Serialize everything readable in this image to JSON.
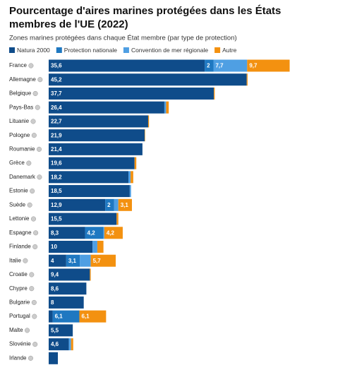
{
  "chart_data": {
    "type": "stacked_bar_horizontal",
    "title": "Pourcentage d'aires marines protégées dans les États membres de l'UE (2022)",
    "subtitle": "Zones marines protégées dans chaque État membre (par type de protection)",
    "categories": [
      "France",
      "Allemagne",
      "Belgique",
      "Pays-Bas",
      "Lituanie",
      "Pologne",
      "Roumanie",
      "Grèce",
      "Danemark",
      "Estonie",
      "Suède",
      "Lettonie",
      "Espagne",
      "Finlande",
      "Italie",
      "Croatie",
      "Chypre",
      "Bulgarie",
      "Portugal",
      "Malte",
      "Slovénie",
      "Irlande"
    ],
    "series": [
      {
        "name": "Natura 2000",
        "color": "#0f4c8a",
        "values": [
          35.6,
          45.2,
          37.7,
          26.4,
          22.7,
          21.9,
          21.4,
          19.6,
          18.2,
          18.5,
          12.9,
          15.5,
          8.3,
          10,
          4,
          9.4,
          8.6,
          8,
          0.9,
          5.5,
          4.6,
          2.1
        ],
        "value_labels": [
          "35,6",
          "45,2",
          "37,7",
          "26,4",
          "22,7",
          "21,9",
          "21,4",
          "19,6",
          "18,2",
          "18,5",
          "12,9",
          "15,5",
          "8,3",
          "10",
          "4",
          "9,4",
          "8,6",
          "8",
          null,
          "5,5",
          "4,6",
          null
        ]
      },
      {
        "name": "Protection nationale",
        "color": "#1f78c1",
        "values": [
          2,
          0,
          0,
          0,
          0,
          0,
          0,
          0,
          0,
          0,
          2,
          0,
          4.2,
          0,
          3.1,
          0,
          0,
          0,
          6.1,
          0,
          0,
          0
        ],
        "value_labels": [
          "2",
          null,
          null,
          null,
          null,
          null,
          null,
          null,
          null,
          null,
          "2",
          null,
          "4,2",
          null,
          "3,1",
          null,
          null,
          null,
          "6,1",
          null,
          null,
          null
        ]
      },
      {
        "name": "Convention de mer régionale",
        "color": "#4f9fe3",
        "values": [
          7.7,
          0,
          0,
          0.4,
          0,
          0,
          0,
          0,
          0.5,
          0.3,
          1,
          0,
          0.2,
          1.1,
          2.5,
          0,
          0,
          0,
          0,
          0,
          0.5,
          0
        ],
        "value_labels": [
          "7,7",
          null,
          null,
          null,
          null,
          null,
          null,
          null,
          null,
          null,
          null,
          null,
          null,
          null,
          null,
          null,
          null,
          null,
          null,
          null,
          null,
          null
        ]
      },
      {
        "name": "Autre",
        "color": "#f39110",
        "values": [
          9.7,
          0.2,
          0.2,
          0.6,
          0.2,
          0.1,
          0,
          0.4,
          0.6,
          0,
          3.1,
          0.4,
          4.2,
          1.4,
          5.7,
          0.2,
          0,
          0,
          6.1,
          0,
          0.5,
          0
        ],
        "value_labels": [
          "9,7",
          null,
          null,
          null,
          null,
          null,
          null,
          null,
          null,
          null,
          "3,1",
          null,
          "4,2",
          null,
          "5,7",
          null,
          null,
          null,
          "6,1",
          null,
          null,
          null
        ]
      }
    ]
  }
}
